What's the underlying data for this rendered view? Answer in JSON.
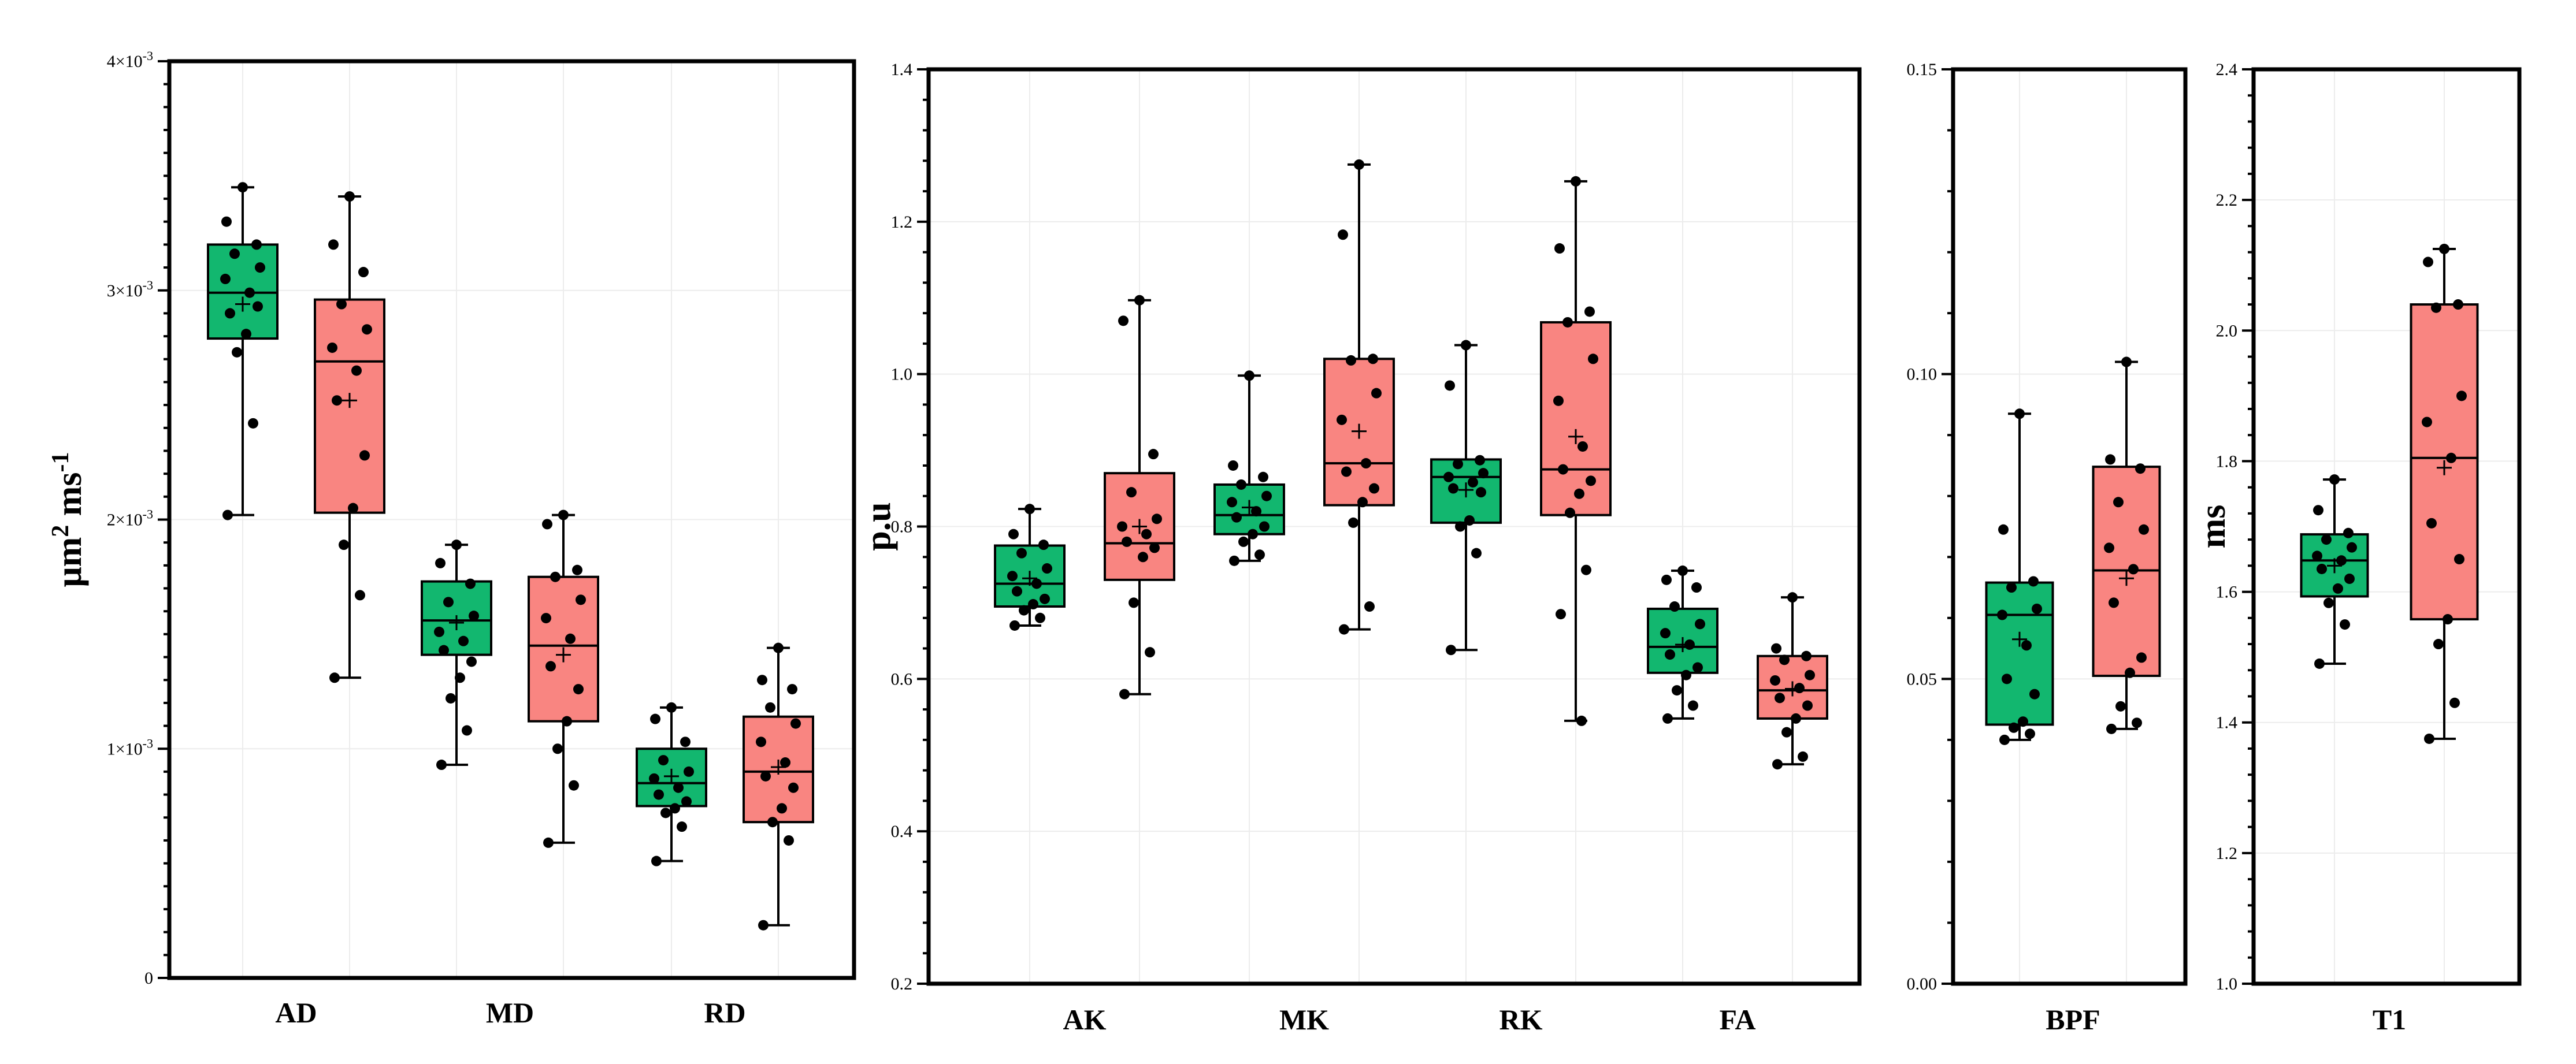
{
  "colors": {
    "group1": "#12b76f",
    "group2": "#f98581"
  },
  "chart_data": [
    {
      "type": "box",
      "title": "",
      "ylabel": "μm² ms⁻¹",
      "ylim": [
        0,
        0.004
      ],
      "yticks": [
        {
          "value": 0,
          "label": "0"
        },
        {
          "value": 0.001,
          "label": "1×10⁻³"
        },
        {
          "value": 0.002,
          "label": "2×10⁻³"
        },
        {
          "value": 0.003,
          "label": "3×10⁻³"
        },
        {
          "value": 0.004,
          "label": "4×10⁻³"
        }
      ],
      "categories": [
        "AD",
        "MD",
        "RD"
      ],
      "series": [
        {
          "category": "AD",
          "group": 1,
          "min": 0.00202,
          "q1": 0.00279,
          "median": 0.00299,
          "q3": 0.0032,
          "max": 0.00345,
          "mean": 0.00294,
          "points": [
            0.00345,
            0.0033,
            0.0032,
            0.00316,
            0.0031,
            0.00305,
            0.00299,
            0.0029,
            0.00293,
            0.00281,
            0.00273,
            0.00242,
            0.00202
          ]
        },
        {
          "category": "AD",
          "group": 2,
          "min": 0.00131,
          "q1": 0.00203,
          "median": 0.00269,
          "q3": 0.00296,
          "max": 0.00341,
          "mean": 0.00252,
          "points": [
            0.00341,
            0.0032,
            0.00308,
            0.00294,
            0.00283,
            0.00275,
            0.00265,
            0.00252,
            0.00228,
            0.00205,
            0.00189,
            0.00167,
            0.00131
          ]
        },
        {
          "category": "MD",
          "group": 1,
          "min": 0.00093,
          "q1": 0.00141,
          "median": 0.00156,
          "q3": 0.00173,
          "max": 0.00189,
          "mean": 0.00155,
          "points": [
            0.00189,
            0.00181,
            0.00172,
            0.00164,
            0.00158,
            0.00151,
            0.00147,
            0.00143,
            0.00138,
            0.00131,
            0.00122,
            0.00108,
            0.00093
          ]
        },
        {
          "category": "MD",
          "group": 2,
          "min": 0.00059,
          "q1": 0.00112,
          "median": 0.00145,
          "q3": 0.00175,
          "max": 0.00202,
          "mean": 0.00141,
          "points": [
            0.00202,
            0.00198,
            0.00178,
            0.00175,
            0.00165,
            0.00157,
            0.00148,
            0.00136,
            0.00126,
            0.00112,
            0.001,
            0.00084,
            0.00059
          ]
        },
        {
          "category": "RD",
          "group": 1,
          "min": 0.00051,
          "q1": 0.00075,
          "median": 0.00085,
          "q3": 0.001,
          "max": 0.00118,
          "mean": 0.00088,
          "points": [
            0.00118,
            0.00113,
            0.00103,
            0.00095,
            0.0009,
            0.00087,
            0.00083,
            0.0008,
            0.00077,
            0.00074,
            0.00072,
            0.00066,
            0.00051
          ]
        },
        {
          "category": "RD",
          "group": 2,
          "min": 0.00023,
          "q1": 0.00068,
          "median": 0.0009,
          "q3": 0.00114,
          "max": 0.00144,
          "mean": 0.00092,
          "points": [
            0.00144,
            0.0013,
            0.00126,
            0.00118,
            0.00111,
            0.00103,
            0.00094,
            0.00088,
            0.00083,
            0.00074,
            0.00068,
            0.0006,
            0.00023
          ]
        }
      ]
    },
    {
      "type": "box",
      "title": "",
      "ylabel": "p.u",
      "ylim": [
        0.2,
        1.4
      ],
      "yticks": [
        {
          "value": 0.2,
          "label": "0.2"
        },
        {
          "value": 0.4,
          "label": "0.4"
        },
        {
          "value": 0.6,
          "label": "0.6"
        },
        {
          "value": 0.8,
          "label": "0.8"
        },
        {
          "value": 1.0,
          "label": "1.0"
        },
        {
          "value": 1.2,
          "label": "1.2"
        },
        {
          "value": 1.4,
          "label": "1.4"
        }
      ],
      "categories": [
        "AK",
        "MK",
        "RK",
        "FA"
      ],
      "series": [
        {
          "category": "AK",
          "group": 1,
          "min": 0.67,
          "q1": 0.695,
          "median": 0.725,
          "q3": 0.775,
          "max": 0.823,
          "mean": 0.732,
          "points": [
            0.823,
            0.79,
            0.776,
            0.765,
            0.745,
            0.735,
            0.725,
            0.715,
            0.705,
            0.698,
            0.69,
            0.68,
            0.67
          ]
        },
        {
          "category": "AK",
          "group": 2,
          "min": 0.58,
          "q1": 0.73,
          "median": 0.778,
          "q3": 0.87,
          "max": 1.097,
          "mean": 0.8,
          "points": [
            1.097,
            1.07,
            0.895,
            0.845,
            0.81,
            0.8,
            0.79,
            0.78,
            0.772,
            0.76,
            0.7,
            0.635,
            0.58
          ]
        },
        {
          "category": "MK",
          "group": 1,
          "min": 0.755,
          "q1": 0.79,
          "median": 0.815,
          "q3": 0.855,
          "max": 0.998,
          "mean": 0.825,
          "points": [
            0.998,
            0.88,
            0.865,
            0.855,
            0.84,
            0.832,
            0.82,
            0.812,
            0.8,
            0.79,
            0.78,
            0.763,
            0.755
          ]
        },
        {
          "category": "MK",
          "group": 2,
          "min": 0.665,
          "q1": 0.828,
          "median": 0.883,
          "q3": 1.02,
          "max": 1.275,
          "mean": 0.925,
          "points": [
            1.275,
            1.183,
            1.02,
            1.018,
            0.975,
            0.94,
            0.883,
            0.872,
            0.85,
            0.832,
            0.805,
            0.695,
            0.665
          ]
        },
        {
          "category": "RK",
          "group": 1,
          "min": 0.638,
          "q1": 0.805,
          "median": 0.865,
          "q3": 0.888,
          "max": 1.038,
          "mean": 0.848,
          "points": [
            1.038,
            0.985,
            0.887,
            0.882,
            0.87,
            0.865,
            0.858,
            0.85,
            0.845,
            0.808,
            0.8,
            0.765,
            0.638
          ]
        },
        {
          "category": "RK",
          "group": 2,
          "min": 0.545,
          "q1": 0.815,
          "median": 0.875,
          "q3": 1.068,
          "max": 1.253,
          "mean": 0.918,
          "points": [
            1.253,
            1.165,
            1.082,
            1.068,
            1.02,
            0.965,
            0.905,
            0.875,
            0.86,
            0.843,
            0.818,
            0.743,
            0.685,
            0.545
          ]
        },
        {
          "category": "FA",
          "group": 1,
          "min": 0.548,
          "q1": 0.608,
          "median": 0.642,
          "q3": 0.692,
          "max": 0.742,
          "mean": 0.645,
          "points": [
            0.742,
            0.73,
            0.72,
            0.695,
            0.672,
            0.66,
            0.645,
            0.632,
            0.615,
            0.605,
            0.585,
            0.565,
            0.548
          ]
        },
        {
          "category": "FA",
          "group": 2,
          "min": 0.488,
          "q1": 0.548,
          "median": 0.585,
          "q3": 0.63,
          "max": 0.707,
          "mean": 0.587,
          "points": [
            0.707,
            0.64,
            0.63,
            0.625,
            0.605,
            0.598,
            0.588,
            0.575,
            0.565,
            0.548,
            0.53,
            0.498,
            0.488
          ]
        }
      ]
    },
    {
      "type": "box",
      "title": "",
      "ylabel": "",
      "ylim": [
        0,
        0.15
      ],
      "yticks": [
        {
          "value": 0,
          "label": "0.00"
        },
        {
          "value": 0.05,
          "label": "0.05"
        },
        {
          "value": 0.1,
          "label": "0.10"
        },
        {
          "value": 0.15,
          "label": "0.15"
        }
      ],
      "categories": [
        "BPF"
      ],
      "series": [
        {
          "category": "BPF",
          "group": 1,
          "min": 0.04,
          "q1": 0.0425,
          "median": 0.0605,
          "q3": 0.0658,
          "max": 0.0935,
          "mean": 0.0565,
          "points": [
            0.0935,
            0.0745,
            0.066,
            0.065,
            0.0615,
            0.0605,
            0.0555,
            0.05,
            0.0475,
            0.043,
            0.042,
            0.041,
            0.04
          ]
        },
        {
          "category": "BPF",
          "group": 2,
          "min": 0.0418,
          "q1": 0.0505,
          "median": 0.0678,
          "q3": 0.0848,
          "max": 0.102,
          "mean": 0.0665,
          "points": [
            0.102,
            0.086,
            0.0845,
            0.079,
            0.0745,
            0.0715,
            0.068,
            0.0625,
            0.0535,
            0.051,
            0.0455,
            0.0428,
            0.0418
          ]
        }
      ]
    },
    {
      "type": "box",
      "title": "",
      "ylabel": "ms",
      "ylim": [
        1.0,
        2.4
      ],
      "yticks": [
        {
          "value": 1.0,
          "label": "1.0"
        },
        {
          "value": 1.2,
          "label": "1.2"
        },
        {
          "value": 1.4,
          "label": "1.4"
        },
        {
          "value": 1.6,
          "label": "1.6"
        },
        {
          "value": 1.8,
          "label": "1.8"
        },
        {
          "value": 2.0,
          "label": "2.0"
        },
        {
          "value": 2.2,
          "label": "2.2"
        },
        {
          "value": 2.4,
          "label": "2.4"
        }
      ],
      "categories": [
        "T1"
      ],
      "series": [
        {
          "category": "T1",
          "group": 1,
          "min": 1.49,
          "q1": 1.593,
          "median": 1.648,
          "q3": 1.688,
          "max": 1.772,
          "mean": 1.64,
          "points": [
            1.772,
            1.725,
            1.69,
            1.68,
            1.668,
            1.655,
            1.648,
            1.635,
            1.62,
            1.605,
            1.583,
            1.55,
            1.49
          ]
        },
        {
          "category": "T1",
          "group": 2,
          "min": 1.375,
          "q1": 1.558,
          "median": 1.805,
          "q3": 2.04,
          "max": 2.125,
          "mean": 1.79,
          "points": [
            2.125,
            2.105,
            2.04,
            2.035,
            1.9,
            1.86,
            1.805,
            1.705,
            1.65,
            1.558,
            1.52,
            1.43,
            1.375
          ]
        }
      ]
    }
  ]
}
